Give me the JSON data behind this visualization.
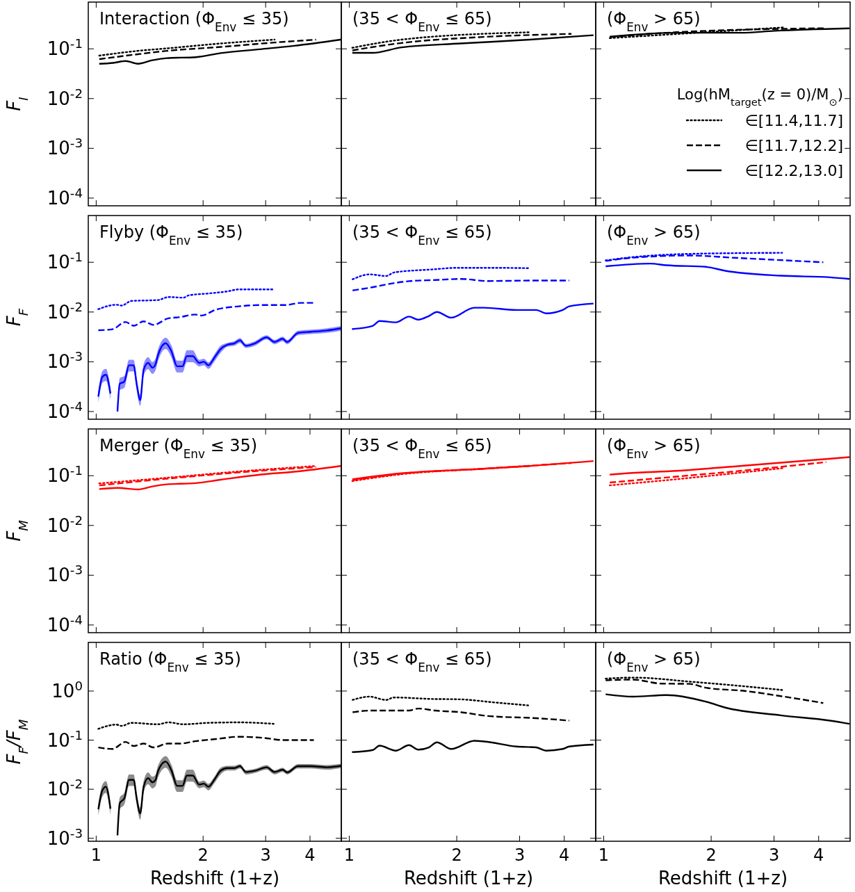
{
  "chart_data": [
    {
      "type": "line",
      "title": "Interaction (Φ$_{Env}$ ≤ 35)",
      "ylabel": "F$_{I}$",
      "log": "xy",
      "xlim": [
        0.95,
        4.9
      ],
      "xticks": [
        1,
        2,
        3,
        4
      ],
      "ylim": [
        7e-05,
        0.87
      ],
      "yticks": [
        {
          "value": 0.1,
          "label": "10$^{-1}$"
        },
        {
          "value": 0.01,
          "label": "10$^{-2}$"
        },
        {
          "value": 0.001,
          "label": "10$^{-3}$"
        },
        {
          "value": 0.0001,
          "label": "10$^{-4}$"
        }
      ],
      "tick_labels": "y",
      "series": [
        {
          "color": "#000000",
          "line_style": "dotted",
          "x": [
            1.02,
            1.31,
            1.58,
            2.24,
            3.18
          ],
          "values": [
            0.073,
            0.091,
            0.102,
            0.128,
            0.153
          ]
        },
        {
          "color": "#000000",
          "line_style": "dashed",
          "x": [
            1.02,
            1.31,
            1.58,
            2.24,
            3.18,
            4.16
          ],
          "values": [
            0.062,
            0.078,
            0.091,
            0.109,
            0.134,
            0.153
          ]
        },
        {
          "color": "#000000",
          "line_style": "solid",
          "x": [
            1.02,
            1.116,
            1.21,
            1.31,
            1.44,
            1.58,
            1.91,
            2.24,
            2.89,
            3.61,
            4.88
          ],
          "values": [
            0.05,
            0.052,
            0.057,
            0.05,
            0.059,
            0.065,
            0.068,
            0.082,
            0.098,
            0.115,
            0.153
          ]
        }
      ]
    },
    {
      "type": "line",
      "title": "(35 < Φ$_{Env}$ ≤ 65)",
      "log": "xy",
      "xlim": [
        0.95,
        4.9
      ],
      "xticks": [
        1,
        2,
        3,
        4
      ],
      "ylim": [
        7e-05,
        0.87
      ],
      "yticks": [
        {
          "value": 0.1,
          "label": null
        },
        {
          "value": 0.01,
          "label": null
        },
        {
          "value": 0.001,
          "label": null
        },
        {
          "value": 0.0001,
          "label": null
        }
      ],
      "tick_labels": false,
      "series": [
        {
          "color": "#000000",
          "line_style": "dotted",
          "x": [
            1.02,
            1.4,
            3.2
          ],
          "values": [
            0.105,
            0.153,
            0.215
          ]
        },
        {
          "color": "#000000",
          "line_style": "dashed",
          "x": [
            1.02,
            1.4,
            2.33,
            4.19
          ],
          "values": [
            0.093,
            0.131,
            0.172,
            0.2
          ]
        },
        {
          "color": "#000000",
          "line_style": "solid",
          "x": [
            1.02,
            1.16,
            1.4,
            2.05,
            3.2,
            4.83
          ],
          "values": [
            0.083,
            0.083,
            0.107,
            0.128,
            0.153,
            0.188
          ]
        }
      ]
    },
    {
      "type": "line",
      "title": "(Φ$_{Env}$ > 65)",
      "log": "xy",
      "xlim": [
        0.95,
        4.9
      ],
      "xticks": [
        1,
        2,
        3,
        4
      ],
      "ylim": [
        7e-05,
        0.87
      ],
      "yticks": [
        {
          "value": 0.1,
          "label": null
        },
        {
          "value": 0.01,
          "label": null
        },
        {
          "value": 0.001,
          "label": null
        },
        {
          "value": 0.0001,
          "label": null
        }
      ],
      "tick_labels": false,
      "legend": "right",
      "legend_title": "Log(hM$_{target}$(z = 0)/M$_{⊙}$)",
      "series": [
        {
          "name": "∈[11.4,11.7]",
          "color": "#000000",
          "line_style": "dotted",
          "x": [
            1.04,
            3.21
          ],
          "values": [
            0.164,
            0.27
          ]
        },
        {
          "name": "∈[11.7,12.2]",
          "color": "#000000",
          "line_style": "dashed",
          "x": [
            1.04,
            1.6,
            4.2
          ],
          "values": [
            0.172,
            0.216,
            0.26
          ]
        },
        {
          "name": "∈[12.2,13.0]",
          "color": "#000000",
          "line_style": "solid",
          "x": [
            1.04,
            1.6,
            2.41,
            3.01,
            4.88
          ],
          "values": [
            0.176,
            0.21,
            0.21,
            0.23,
            0.258
          ]
        }
      ]
    },
    {
      "type": "line",
      "title": "Flyby (Φ$_{Env}$ ≤ 35)",
      "ylabel": "F$_{F}$",
      "log": "xy",
      "xlim": [
        0.95,
        4.9
      ],
      "xticks": [
        1,
        2,
        3,
        4
      ],
      "ylim": [
        7e-05,
        0.87
      ],
      "yticks": [
        {
          "value": 0.1,
          "label": "10$^{-1}$"
        },
        {
          "value": 0.01,
          "label": "10$^{-2}$"
        },
        {
          "value": 0.001,
          "label": "10$^{-3}$"
        },
        {
          "value": 0.0001,
          "label": "10$^{-4}$"
        }
      ],
      "tick_labels": "y",
      "series": [
        {
          "color": "#0000ff",
          "line_style": "dotted",
          "x": [
            1.014,
            1.14,
            1.18,
            1.256,
            1.49,
            1.6,
            1.76,
            1.82,
            2.07,
            2.34,
            2.52,
            3.16
          ],
          "values": [
            0.0114,
            0.014,
            0.0135,
            0.0167,
            0.0174,
            0.02,
            0.0194,
            0.0216,
            0.0236,
            0.026,
            0.0285,
            0.0285
          ]
        },
        {
          "color": "#0000ff",
          "line_style": "dashed",
          "x": [
            1.014,
            1.11,
            1.21,
            1.275,
            1.36,
            1.45,
            1.59,
            1.72,
            1.9,
            1.98,
            2.17,
            2.52,
            2.93,
            3.39,
            3.78,
            4.1
          ],
          "values": [
            0.0043,
            0.0045,
            0.0063,
            0.0053,
            0.0065,
            0.0055,
            0.0074,
            0.0079,
            0.0089,
            0.0085,
            0.0111,
            0.013,
            0.0138,
            0.0138,
            0.0153,
            0.0153
          ]
        },
        {
          "color": "#0000ff",
          "line_style": "solid",
          "x": [
            1.014,
            1.041,
            1.065,
            1.097,
            1.12,
            1.148,
            1.165,
            1.2,
            1.237,
            1.275,
            1.3,
            1.33,
            1.36,
            1.4,
            1.44,
            1.47,
            1.49,
            1.57,
            1.63,
            1.69,
            1.75,
            1.8,
            1.87,
            1.95,
            2.01,
            2.07,
            2.15,
            2.24,
            2.34,
            2.45,
            2.54,
            2.64,
            2.8,
            3.02,
            3.18,
            3.35,
            3.45,
            3.7,
            4.01,
            4.46,
            4.89
          ],
          "values": [
            0.0002,
            0.0005,
            0.00055,
            0.00023,
            null,
            0.0001,
            0.00036,
            0.0004,
            0.00085,
            0.00085,
            0.00036,
            0.00017,
            0.00069,
            0.00095,
            0.00076,
            0.0009,
            0.0013,
            0.00235,
            0.0016,
            0.00081,
            0.00081,
            0.0013,
            0.0013,
            0.00095,
            0.001,
            0.00085,
            0.0012,
            0.0018,
            0.0022,
            0.00235,
            0.0027,
            0.0021,
            0.00235,
            0.0031,
            0.0025,
            0.0029,
            0.0025,
            0.0038,
            0.004,
            0.00425,
            0.0047
          ],
          "lower": [
            0.00015,
            0.000375,
            0.00041,
            0.00017,
            null,
            7.5e-05,
            0.00027,
            0.0003,
            0.00064,
            0.00064,
            0.00027,
            0.00013,
            0.00052,
            0.00071,
            0.00057,
            0.00068,
            0.00098,
            0.0018,
            0.0012,
            0.00061,
            0.00061,
            0.00098,
            0.00098,
            0.00081,
            0.00085,
            0.00072,
            0.001,
            0.0015,
            0.002,
            0.0021,
            0.0024,
            0.0019,
            0.0021,
            0.0028,
            0.00225,
            0.0026,
            0.00225,
            0.0034,
            0.0036,
            0.0038,
            0.0042
          ],
          "upper": [
            0.00026,
            0.00065,
            0.00072,
            0.0003,
            null,
            0.00013,
            0.00047,
            0.00052,
            0.0011,
            0.0011,
            0.00047,
            0.00022,
            0.0009,
            0.00124,
            0.00099,
            0.00117,
            0.0017,
            0.00305,
            0.0021,
            0.00105,
            0.00105,
            0.0017,
            0.0017,
            0.0011,
            0.00115,
            0.00098,
            0.0014,
            0.0021,
            0.0024,
            0.0026,
            0.003,
            0.0023,
            0.0026,
            0.0034,
            0.00275,
            0.0032,
            0.00275,
            0.0042,
            0.0044,
            0.0047,
            0.0052
          ]
        }
      ]
    },
    {
      "type": "line",
      "title": "(35 < Φ$_{Env}$ ≤ 65)",
      "log": "xy",
      "xlim": [
        0.95,
        4.9
      ],
      "xticks": [
        1,
        2,
        3,
        4
      ],
      "ylim": [
        7e-05,
        0.87
      ],
      "yticks": [
        {
          "value": 0.1,
          "label": null
        },
        {
          "value": 0.01,
          "label": null
        },
        {
          "value": 0.001,
          "label": null
        },
        {
          "value": 0.0001,
          "label": null
        }
      ],
      "tick_labels": false,
      "series": [
        {
          "color": "#0000ff",
          "line_style": "dotted",
          "x": [
            1.022,
            1.14,
            1.267,
            1.336,
            1.7,
            2.01,
            2.59,
            3.17
          ],
          "values": [
            0.0455,
            0.057,
            0.053,
            0.0625,
            0.0716,
            0.0773,
            0.0773,
            0.076
          ]
        },
        {
          "color": "#0000ff",
          "line_style": "dashed",
          "x": [
            1.022,
            1.165,
            1.267,
            1.47,
            1.74,
            2.06,
            2.44,
            3.34,
            4.13
          ],
          "values": [
            0.0272,
            0.0316,
            0.0357,
            0.0417,
            0.044,
            0.0462,
            0.042,
            0.043,
            0.043
          ]
        },
        {
          "color": "#0000ff",
          "line_style": "solid",
          "x": [
            1.018,
            1.165,
            1.215,
            1.35,
            1.47,
            1.56,
            1.67,
            1.76,
            1.93,
            2.24,
            2.39,
            2.94,
            3.34,
            3.56,
            3.96,
            4.13,
            4.83
          ],
          "values": [
            0.00455,
            0.0053,
            0.0066,
            0.0062,
            0.0081,
            0.007,
            0.0083,
            0.01,
            0.0077,
            0.0122,
            0.0122,
            0.011,
            0.011,
            0.0094,
            0.011,
            0.013,
            0.0148
          ]
        }
      ]
    },
    {
      "type": "line",
      "title": "(Φ$_{Env}$ > 65)",
      "log": "xy",
      "xlim": [
        0.95,
        4.9
      ],
      "xticks": [
        1,
        2,
        3,
        4
      ],
      "ylim": [
        7e-05,
        0.87
      ],
      "yticks": [
        {
          "value": 0.1,
          "label": null
        },
        {
          "value": 0.01,
          "label": null
        },
        {
          "value": 0.001,
          "label": null
        },
        {
          "value": 0.0001,
          "label": null
        }
      ],
      "tick_labels": false,
      "series": [
        {
          "color": "#0000ff",
          "line_style": "dotted",
          "x": [
            1.013,
            1.21,
            1.77,
            3.16
          ],
          "values": [
            0.109,
            0.127,
            0.148,
            0.155
          ]
        },
        {
          "color": "#0000ff",
          "line_style": "dashed",
          "x": [
            1.013,
            1.21,
            1.74,
            2.28,
            4.12
          ],
          "values": [
            0.106,
            0.124,
            0.137,
            0.124,
            0.1
          ]
        },
        {
          "color": "#0000ff",
          "line_style": "solid",
          "x": [
            1.013,
            1.35,
            1.5,
            1.93,
            2.19,
            3.13,
            4.3,
            4.88
          ],
          "values": [
            0.083,
            0.094,
            0.087,
            0.081,
            0.0674,
            0.0537,
            0.0498,
            0.0461
          ]
        }
      ]
    },
    {
      "type": "line",
      "title": "Merger (Φ$_{Env}$ ≤ 35)",
      "ylabel": "F$_{M}$",
      "log": "xy",
      "xlim": [
        0.95,
        4.9
      ],
      "xticks": [
        1,
        2,
        3,
        4
      ],
      "ylim": [
        7e-05,
        0.87
      ],
      "yticks": [
        {
          "value": 0.1,
          "label": "10$^{-1}$"
        },
        {
          "value": 0.01,
          "label": "10$^{-2}$"
        },
        {
          "value": 0.001,
          "label": "10$^{-3}$"
        },
        {
          "value": 0.0001,
          "label": "10$^{-4}$"
        }
      ],
      "tick_labels": "y",
      "series": [
        {
          "color": "#ff0000",
          "line_style": "dotted",
          "x": [
            1.02,
            1.58,
            2.46,
            4.16
          ],
          "values": [
            0.07,
            0.091,
            0.12,
            0.157
          ]
        },
        {
          "color": "#ff0000",
          "line_style": "dashed",
          "x": [
            1.02,
            1.58,
            2.46,
            4.16
          ],
          "values": [
            0.064,
            0.087,
            0.115,
            0.15
          ]
        },
        {
          "color": "#ff0000",
          "line_style": "solid",
          "x": [
            1.02,
            1.15,
            1.31,
            1.44,
            1.58,
            1.91,
            2.24,
            2.89,
            3.61,
            4.88
          ],
          "values": [
            0.054,
            0.057,
            0.053,
            0.061,
            0.067,
            0.071,
            0.083,
            0.105,
            0.12,
            0.157
          ]
        }
      ]
    },
    {
      "type": "line",
      "title": "(35 < Φ$_{Env}$ ≤ 65)",
      "log": "xy",
      "xlim": [
        0.95,
        4.9
      ],
      "xticks": [
        1,
        2,
        3,
        4
      ],
      "ylim": [
        7e-05,
        0.87
      ],
      "yticks": [
        {
          "value": 0.1,
          "label": null
        },
        {
          "value": 0.01,
          "label": null
        },
        {
          "value": 0.001,
          "label": null
        },
        {
          "value": 0.0001,
          "label": null
        }
      ],
      "tick_labels": false,
      "series": [
        {
          "color": "#ff0000",
          "line_style": "dotted",
          "x": [
            1.02,
            1.4,
            2.33,
            3.2
          ],
          "values": [
            0.078,
            0.107,
            0.137,
            0.157
          ]
        },
        {
          "color": "#ff0000",
          "line_style": "dashed",
          "x": [
            1.02,
            1.4,
            2.33,
            4.19
          ],
          "values": [
            0.081,
            0.11,
            0.137,
            0.18
          ]
        },
        {
          "color": "#ff0000",
          "line_style": "solid",
          "x": [
            1.02,
            1.4,
            2.33,
            3.2,
            4.83
          ],
          "values": [
            0.085,
            0.112,
            0.137,
            0.157,
            0.197
          ]
        }
      ]
    },
    {
      "type": "line",
      "title": "(Φ$_{Env}$ > 65)",
      "log": "xy",
      "xlim": [
        0.95,
        4.9
      ],
      "xticks": [
        1,
        2,
        3,
        4
      ],
      "ylim": [
        7e-05,
        0.87
      ],
      "yticks": [
        {
          "value": 0.1,
          "label": null
        },
        {
          "value": 0.01,
          "label": null
        },
        {
          "value": 0.001,
          "label": null
        },
        {
          "value": 0.0001,
          "label": null
        }
      ],
      "tick_labels": false,
      "series": [
        {
          "color": "#ff0000",
          "line_style": "dotted",
          "x": [
            1.04,
            1.6,
            2.41,
            3.21
          ],
          "values": [
            0.064,
            0.085,
            0.115,
            0.143
          ]
        },
        {
          "color": "#ff0000",
          "line_style": "dashed",
          "x": [
            1.04,
            1.6,
            2.41,
            4.2
          ],
          "values": [
            0.073,
            0.096,
            0.125,
            0.188
          ]
        },
        {
          "color": "#ff0000",
          "line_style": "solid",
          "x": [
            1.04,
            1.16,
            1.6,
            2.41,
            4.88
          ],
          "values": [
            0.105,
            0.112,
            0.125,
            0.157,
            0.236
          ]
        }
      ]
    },
    {
      "type": "line",
      "title": "Ratio (Φ$_{Env}$ ≤ 35)",
      "ylabel": "F$_{F}$/F$_{M}$",
      "xlabel": "Redshift (1+z)",
      "log": "xy",
      "xlim": [
        0.95,
        4.9
      ],
      "xticks": [
        1,
        2,
        3,
        4
      ],
      "ylim": [
        0.00087,
        9.8
      ],
      "yticks": [
        {
          "value": 1,
          "label": "10$^{0}$"
        },
        {
          "value": 0.1,
          "label": "10$^{-1}$"
        },
        {
          "value": 0.01,
          "label": "10$^{-2}$"
        },
        {
          "value": 0.001,
          "label": "10$^{-3}$"
        }
      ],
      "series": [
        {
          "color": "#000000",
          "line_style": "dotted",
          "x": [
            1.014,
            1.14,
            1.18,
            1.256,
            1.49,
            1.6,
            1.76,
            2.07,
            2.52,
            3.16
          ],
          "values": [
            0.17,
            0.207,
            0.195,
            0.225,
            0.21,
            0.23,
            0.21,
            0.225,
            0.23,
            0.215
          ]
        },
        {
          "color": "#000000",
          "line_style": "dashed",
          "x": [
            1.014,
            1.11,
            1.21,
            1.275,
            1.36,
            1.45,
            1.59,
            1.72,
            1.9,
            2.17,
            2.52,
            2.93,
            3.39,
            3.78,
            4.1
          ],
          "values": [
            0.071,
            0.066,
            0.092,
            0.076,
            0.085,
            0.071,
            0.085,
            0.085,
            0.095,
            0.105,
            0.117,
            0.112,
            0.1,
            0.1,
            0.1
          ]
        },
        {
          "color": "#000000",
          "line_style": "solid",
          "x": [
            1.014,
            1.041,
            1.065,
            1.097,
            1.12,
            1.148,
            1.165,
            1.2,
            1.237,
            1.275,
            1.3,
            1.33,
            1.36,
            1.4,
            1.44,
            1.47,
            1.49,
            1.57,
            1.63,
            1.69,
            1.75,
            1.8,
            1.87,
            1.95,
            2.01,
            2.07,
            2.15,
            2.24,
            2.34,
            2.45,
            2.54,
            2.64,
            2.8,
            3.02,
            3.18,
            3.35,
            3.45,
            3.7,
            4.01,
            4.46,
            4.89
          ],
          "values": [
            0.0039,
            0.0095,
            0.0112,
            0.004,
            null,
            0.00115,
            0.0052,
            0.0065,
            0.0155,
            0.0155,
            0.0065,
            0.0032,
            0.0112,
            0.0168,
            0.0138,
            0.0155,
            0.0224,
            0.0366,
            0.0238,
            0.0117,
            0.0117,
            0.019,
            0.019,
            0.0124,
            0.013,
            0.0112,
            0.0155,
            0.0238,
            0.027,
            0.027,
            0.0295,
            0.0224,
            0.0238,
            0.028,
            0.0224,
            0.025,
            0.022,
            0.0295,
            0.0295,
            0.028,
            0.03
          ],
          "lower": [
            0.0029,
            0.0071,
            0.0084,
            0.003,
            null,
            0.0009,
            0.0039,
            0.0049,
            0.0116,
            0.0116,
            0.0049,
            0.0024,
            0.0084,
            0.0126,
            0.0104,
            0.0116,
            0.0168,
            0.0275,
            0.0179,
            0.0088,
            0.0088,
            0.0143,
            0.0143,
            0.0105,
            0.011,
            0.0095,
            0.0132,
            0.02,
            0.024,
            0.024,
            0.0265,
            0.02,
            0.0215,
            0.025,
            0.02,
            0.0225,
            0.02,
            0.0265,
            0.0265,
            0.025,
            0.027
          ],
          "upper": [
            0.0051,
            0.0124,
            0.0146,
            0.0052,
            null,
            0.0015,
            0.0068,
            0.0085,
            0.02,
            0.02,
            0.0085,
            0.0042,
            0.0146,
            0.022,
            0.018,
            0.02,
            0.029,
            0.0475,
            0.031,
            0.0152,
            0.0152,
            0.025,
            0.025,
            0.0143,
            0.015,
            0.0129,
            0.0178,
            0.0275,
            0.03,
            0.03,
            0.0325,
            0.0245,
            0.026,
            0.031,
            0.0245,
            0.0275,
            0.024,
            0.0325,
            0.0325,
            0.031,
            0.033
          ]
        }
      ]
    },
    {
      "type": "line",
      "title": "(35 < Φ$_{Env}$ ≤ 65)",
      "xlabel": "Redshift (1+z)",
      "log": "xy",
      "xlim": [
        0.95,
        4.9
      ],
      "xticks": [
        1,
        2,
        3,
        4
      ],
      "ylim": [
        0.00087,
        9.8
      ],
      "yticks": [
        {
          "value": 1,
          "label": null
        },
        {
          "value": 0.1,
          "label": null
        },
        {
          "value": 0.01,
          "label": null
        },
        {
          "value": 0.001,
          "label": null
        }
      ],
      "tick_labels": "x",
      "series": [
        {
          "color": "#000000",
          "line_style": "dotted",
          "x": [
            1.022,
            1.14,
            1.267,
            1.336,
            1.7,
            2.01,
            2.59,
            3.17
          ],
          "values": [
            0.66,
            0.77,
            0.66,
            0.74,
            0.69,
            0.68,
            0.58,
            0.51
          ]
        },
        {
          "color": "#000000",
          "line_style": "dashed",
          "x": [
            1.022,
            1.14,
            1.47,
            1.56,
            1.74,
            2.06,
            2.44,
            3.34,
            4.13
          ],
          "values": [
            0.37,
            0.4,
            0.4,
            0.44,
            0.4,
            0.37,
            0.31,
            0.28,
            0.25
          ]
        },
        {
          "color": "#000000",
          "line_style": "solid",
          "x": [
            1.018,
            1.165,
            1.215,
            1.35,
            1.47,
            1.56,
            1.67,
            1.76,
            1.93,
            2.24,
            2.39,
            2.94,
            3.34,
            3.56,
            3.96,
            4.13,
            4.83
          ],
          "values": [
            0.057,
            0.063,
            0.077,
            0.061,
            0.079,
            0.064,
            0.071,
            0.09,
            0.066,
            0.097,
            0.094,
            0.074,
            0.071,
            0.061,
            0.066,
            0.074,
            0.081
          ]
        }
      ]
    },
    {
      "type": "line",
      "title": "(Φ$_{Env}$ > 65)",
      "xlabel": "Redshift (1+z)",
      "log": "xy",
      "xlim": [
        0.95,
        4.9
      ],
      "xticks": [
        1,
        2,
        3,
        4
      ],
      "ylim": [
        0.00087,
        9.8
      ],
      "yticks": [
        {
          "value": 1,
          "label": null
        },
        {
          "value": 0.1,
          "label": null
        },
        {
          "value": 0.01,
          "label": null
        },
        {
          "value": 0.001,
          "label": null
        }
      ],
      "tick_labels": "x",
      "series": [
        {
          "color": "#000000",
          "line_style": "dotted",
          "x": [
            1.013,
            1.21,
            1.77,
            2.28,
            3.16
          ],
          "values": [
            1.79,
            1.88,
            1.54,
            1.32,
            1.05
          ]
        },
        {
          "color": "#000000",
          "line_style": "dashed",
          "x": [
            1.013,
            1.21,
            1.45,
            1.74,
            1.93,
            2.5,
            3.13,
            4.12
          ],
          "values": [
            1.66,
            1.71,
            1.42,
            1.4,
            1.17,
            1.0,
            0.79,
            0.57
          ]
        },
        {
          "color": "#000000",
          "line_style": "solid",
          "x": [
            1.013,
            1.21,
            1.5,
            1.93,
            2.19,
            3.13,
            4.3,
            4.88
          ],
          "values": [
            0.86,
            0.77,
            0.83,
            0.61,
            0.46,
            0.32,
            0.25,
            0.215
          ]
        }
      ]
    }
  ]
}
